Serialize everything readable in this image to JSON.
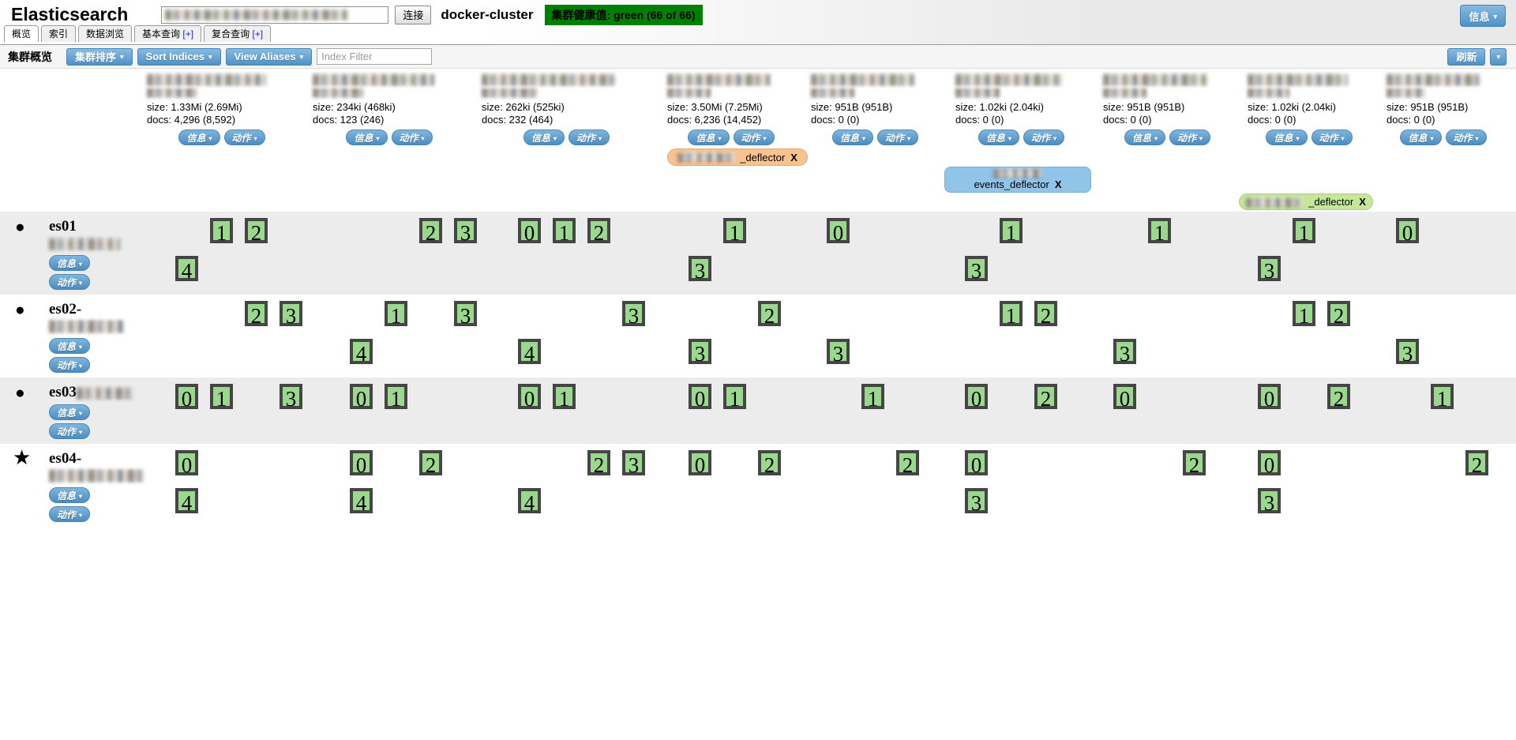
{
  "header": {
    "app_title": "Elasticsearch",
    "server_input_redacted": true,
    "connect_button": "连接",
    "cluster_name": "docker-cluster",
    "health_badge": "集群健康值: green (66 of 66)",
    "info_button": "信息"
  },
  "tabs": [
    {
      "label": "概览",
      "active": true
    },
    {
      "label": "索引",
      "active": false
    },
    {
      "label": "数据浏览",
      "active": false
    },
    {
      "label": "基本查询",
      "suffix": "[+]",
      "active": false
    },
    {
      "label": "复合查询",
      "suffix": "[+]",
      "active": false
    }
  ],
  "toolbar": {
    "section_title": "集群概览",
    "cluster_sort_button": "集群排序",
    "sort_indices_button": "Sort Indices",
    "view_aliases_button": "View Aliases",
    "index_filter_placeholder": "Index Filter",
    "refresh_button": "刷新"
  },
  "labels": {
    "info_button": "信息",
    "action_button": "动作",
    "dropdown_arrow": "▾"
  },
  "colors": {
    "health_green": "#008000",
    "shard_fill": "#9ad88e",
    "shard_border": "#454545",
    "alias_orange": "#f9c28e",
    "alias_blue": "#90c4e8",
    "alias_green": "#c4e79a"
  },
  "indices": [
    {
      "name_redacted": true,
      "size": "size: 1.33Mi (2.69Mi)",
      "docs": "docs: 4,296 (8,592)",
      "shards_per_row": 4
    },
    {
      "name_redacted": true,
      "size": "size: 234ki (468ki)",
      "docs": "docs: 123 (246)",
      "shards_per_row": 4
    },
    {
      "name_redacted": true,
      "size": "size: 262ki (525ki)",
      "docs": "docs: 232 (464)",
      "shards_per_row": 4
    },
    {
      "name_redacted": true,
      "size": "size: 3.50Mi (7.25Mi)",
      "docs": "docs: 6,236 (14,452)",
      "shards_per_row": 3
    },
    {
      "name_redacted": true,
      "size": "size: 951B (951B)",
      "docs": "docs: 0 (0)",
      "shards_per_row": 3
    },
    {
      "name_redacted": true,
      "size": "size: 1.02ki (2.04ki)",
      "docs": "docs: 0 (0)",
      "shards_per_row": 3
    },
    {
      "name_redacted": true,
      "size": "size: 951B (951B)",
      "docs": "docs: 0 (0)",
      "shards_per_row": 3
    },
    {
      "name_redacted": true,
      "size": "size: 1.02ki (2.04ki)",
      "docs": "docs: 0 (0)",
      "shards_per_row": 3
    },
    {
      "name_redacted": true,
      "size": "size: 951B (951B)",
      "docs": "docs: 0 (0)",
      "shards_per_row": 3
    }
  ],
  "aliases": [
    {
      "name_prefix_redacted": true,
      "label": "_deflector",
      "close": "X",
      "color": "#f9c28e",
      "index_column": 4,
      "lines": 1
    },
    {
      "name_prefix_redacted": true,
      "label": "events_deflector",
      "close": "X",
      "color": "#90c4e8",
      "index_column": 6,
      "lines": 2
    },
    {
      "name_prefix_redacted": true,
      "label": "_deflector",
      "close": "X",
      "color": "#c4e79a",
      "index_column": 8,
      "lines": 1
    }
  ],
  "nodes": [
    {
      "marker": "●",
      "is_master": false,
      "name": "es01",
      "name_suffix_redacted": true,
      "name_line2_redacted": false,
      "shards": [
        [
          1,
          2,
          4
        ],
        [
          2,
          3
        ],
        [
          0,
          1,
          2
        ],
        [
          1,
          3
        ],
        [
          0
        ],
        [
          1,
          3
        ],
        [
          1
        ],
        [
          1,
          3
        ],
        [
          0
        ]
      ]
    },
    {
      "marker": "●",
      "is_master": false,
      "name": "es02-",
      "name_suffix_redacted": false,
      "name_line2_redacted": true,
      "shards": [
        [
          2,
          3
        ],
        [
          1,
          3,
          4
        ],
        [
          3,
          4
        ],
        [
          2,
          3
        ],
        [
          3
        ],
        [
          1,
          2
        ],
        [
          3
        ],
        [
          1,
          2
        ],
        [
          3
        ]
      ]
    },
    {
      "marker": "●",
      "is_master": false,
      "name": "es03",
      "name_suffix_redacted": true,
      "name_line2_redacted": false,
      "shards": [
        [
          0,
          1,
          3
        ],
        [
          0,
          1
        ],
        [
          0,
          1
        ],
        [
          0,
          1
        ],
        [
          1
        ],
        [
          0,
          2
        ],
        [
          0
        ],
        [
          0,
          2
        ],
        [
          1
        ]
      ]
    },
    {
      "marker": "★",
      "is_master": true,
      "name": "es04-",
      "name_suffix_redacted": false,
      "name_line2_redacted": true,
      "shards": [
        [
          0,
          4
        ],
        [
          0,
          2,
          4
        ],
        [
          2,
          3,
          4
        ],
        [
          0,
          2
        ],
        [
          2
        ],
        [
          0,
          3
        ],
        [
          2
        ],
        [
          0,
          3
        ],
        [
          2
        ]
      ]
    }
  ]
}
